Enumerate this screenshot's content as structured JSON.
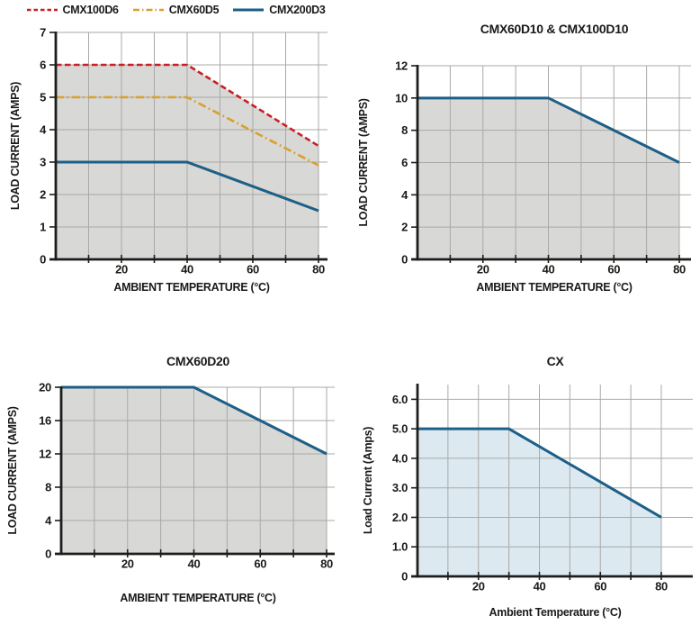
{
  "colors": {
    "background": "#ffffff",
    "grid": "#a9a9a7",
    "axis": "#1d1d1b",
    "text": "#1a1a18",
    "red": "#c52127",
    "orange": "#d9a02c",
    "blue": "#1d5f87",
    "gray_fill": "#d8d8d6",
    "lightblue_fill": "#dce9f1"
  },
  "legend": {
    "items": [
      "CMX100D6",
      "CMX60D5",
      "CMX200D3"
    ]
  },
  "chart_data": [
    {
      "type": "area",
      "title": "",
      "xlabel": "AMBIENT TEMPERATURE (°C)",
      "ylabel": "LOAD CURRENT (AMPS)",
      "xlim": [
        0,
        84
      ],
      "ylim": [
        0,
        7
      ],
      "x_data_max": 80,
      "xgrid": [
        10,
        20,
        30,
        40,
        50,
        60,
        70,
        80
      ],
      "xticks": [
        20,
        40,
        60,
        80
      ],
      "xtick_labels": [
        "20",
        "40",
        "60",
        "80"
      ],
      "yticks": [
        0,
        1,
        2,
        3,
        4,
        5,
        6,
        7
      ],
      "ytick_labels": [
        "0",
        "1",
        "2",
        "3",
        "4",
        "5",
        "6",
        "7"
      ],
      "grid": true,
      "legend_position": "top",
      "fill": {
        "under_series": 0,
        "color": "#d8d8d6"
      },
      "series": [
        {
          "name": "CMX100D6",
          "style": "dashed",
          "color": "#c52127",
          "points": [
            [
              0,
              6
            ],
            [
              40,
              6
            ],
            [
              80,
              3.5
            ]
          ]
        },
        {
          "name": "CMX60D5",
          "style": "dashdot",
          "color": "#d9a02c",
          "points": [
            [
              0,
              5
            ],
            [
              40,
              5
            ],
            [
              80,
              2.9
            ]
          ]
        },
        {
          "name": "CMX200D3",
          "style": "solid",
          "color": "#1d5f87",
          "points": [
            [
              0,
              3
            ],
            [
              40,
              3
            ],
            [
              80,
              1.5
            ]
          ]
        }
      ]
    },
    {
      "type": "area",
      "title": "CMX60D10 & CMX100D10",
      "xlabel": "AMBIENT TEMPERATURE (°C)",
      "ylabel": "LOAD CURRENT (AMPS)",
      "xlim": [
        0,
        84
      ],
      "ylim": [
        0,
        12
      ],
      "x_data_max": 80,
      "xgrid": [
        10,
        20,
        30,
        40,
        50,
        60,
        70,
        80
      ],
      "xticks": [
        20,
        40,
        60,
        80
      ],
      "xtick_labels": [
        "20",
        "40",
        "60",
        "80"
      ],
      "yticks": [
        0,
        2,
        4,
        6,
        8,
        10,
        12
      ],
      "ytick_labels": [
        "0",
        "2",
        "4",
        "6",
        "8",
        "10",
        "12"
      ],
      "grid": true,
      "fill": {
        "under_series": 0,
        "color": "#d8d8d6"
      },
      "series": [
        {
          "name": "CMX60D10-CMX100D10",
          "style": "solid",
          "color": "#1d5f87",
          "points": [
            [
              0,
              10
            ],
            [
              40,
              10
            ],
            [
              80,
              6
            ]
          ]
        }
      ]
    },
    {
      "type": "area",
      "title": "CMX60D20",
      "xlabel": "AMBIENT TEMPERATURE (°C)",
      "ylabel": "LOAD CURRENT (AMPS)",
      "xlim": [
        0,
        84
      ],
      "ylim": [
        0,
        20
      ],
      "x_data_max": 80,
      "xgrid": [
        10,
        20,
        30,
        40,
        50,
        60,
        70,
        80
      ],
      "xticks": [
        20,
        40,
        60,
        80
      ],
      "xtick_labels": [
        "20",
        "40",
        "60",
        "80"
      ],
      "yticks": [
        0,
        4,
        8,
        12,
        16,
        20
      ],
      "ytick_labels": [
        "0",
        "4",
        "8",
        "12",
        "16",
        "20"
      ],
      "grid": true,
      "fill": {
        "under_series": 0,
        "color": "#d8d8d6"
      },
      "series": [
        {
          "name": "CMX60D20",
          "style": "solid",
          "color": "#1d5f87",
          "points": [
            [
              0,
              20
            ],
            [
              40,
              20
            ],
            [
              80,
              12
            ]
          ]
        }
      ]
    },
    {
      "type": "area",
      "title": "CX",
      "xlabel": "Ambient Temperature (°C)",
      "ylabel": "Load Current (Amps)",
      "xlim": [
        0,
        90
      ],
      "ylim": [
        0,
        6.5
      ],
      "x_data_max": 80,
      "xgrid": [
        10,
        20,
        30,
        40,
        50,
        60,
        70,
        80
      ],
      "xticks": [
        20,
        40,
        60,
        80
      ],
      "xtick_labels": [
        "20",
        "40",
        "60",
        "80"
      ],
      "yticks": [
        0,
        1,
        2,
        3,
        4,
        5,
        6
      ],
      "ytick_labels": [
        "0",
        "1.0",
        "2.0",
        "3.0",
        "4.0",
        "5.0",
        "6.0"
      ],
      "grid": true,
      "fill": {
        "under_series": 0,
        "color": "#dce9f1"
      },
      "series": [
        {
          "name": "CX",
          "style": "solid",
          "color": "#1d5f87",
          "points": [
            [
              0,
              5
            ],
            [
              30,
              5
            ],
            [
              80,
              2
            ]
          ]
        }
      ]
    }
  ]
}
